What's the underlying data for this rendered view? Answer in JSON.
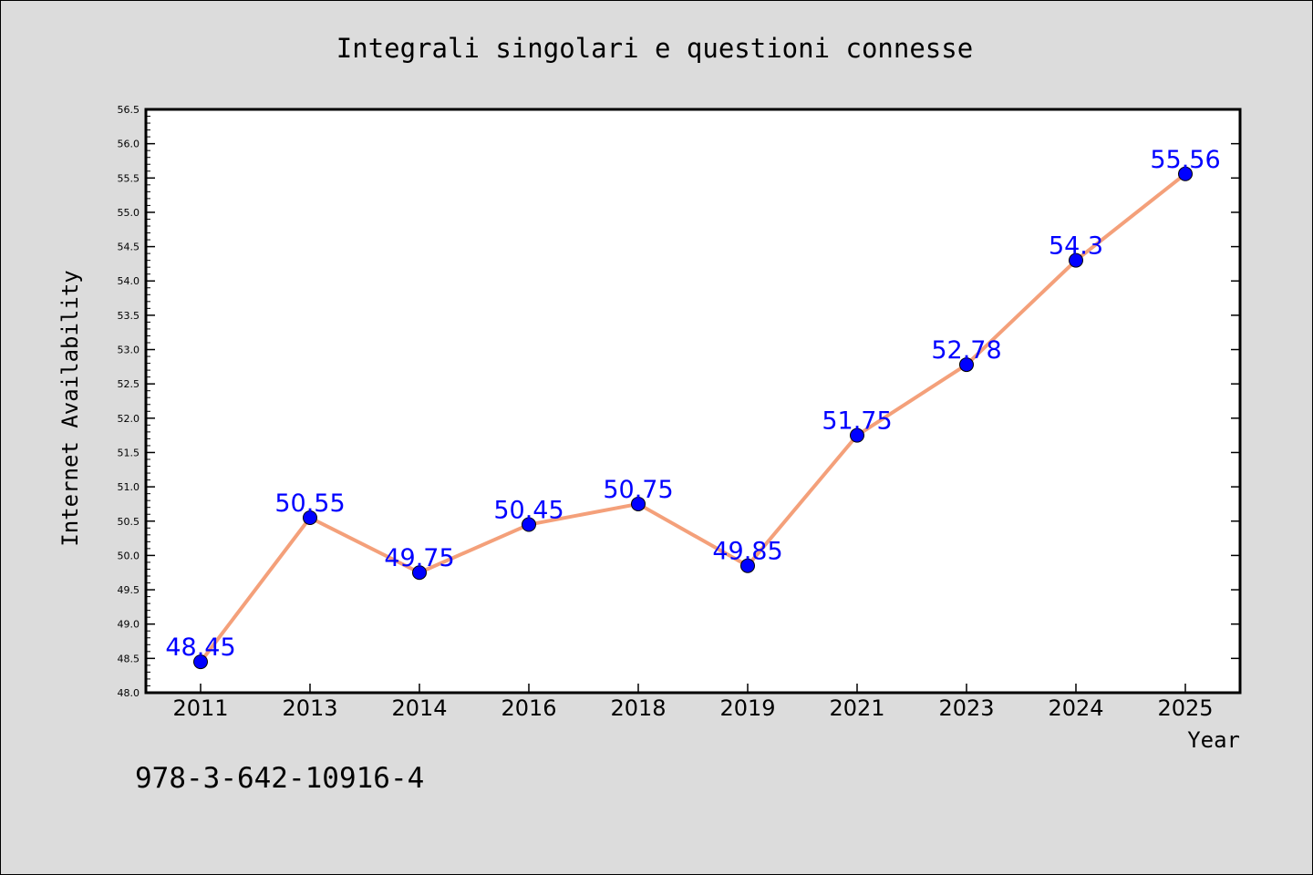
{
  "chart_data": {
    "type": "line",
    "title": "Integrali singolari e questioni connesse",
    "xlabel": "Year",
    "ylabel": "Internet Availability",
    "categories": [
      "2011",
      "2013",
      "2014",
      "2016",
      "2018",
      "2019",
      "2021",
      "2023",
      "2024",
      "2025"
    ],
    "series": [
      {
        "values": [
          48.45,
          50.55,
          49.75,
          50.45,
          50.75,
          49.85,
          51.75,
          52.78,
          54.3,
          55.56
        ],
        "labels": [
          "48.45",
          "50.55",
          "49.75",
          "50.45",
          "50.75",
          "49.85",
          "51.75",
          "52.78",
          "54.3",
          "55.56"
        ]
      }
    ],
    "ylim": [
      48.0,
      56.5
    ],
    "yticks": [
      "48.0",
      "48.5",
      "49.0",
      "49.5",
      "50.0",
      "50.5",
      "51.0",
      "51.5",
      "52.0",
      "52.5",
      "53.0",
      "53.5",
      "54.0",
      "54.5",
      "55.0",
      "55.5",
      "56.0",
      "56.5"
    ],
    "grid": false,
    "colors": {
      "line": "#f4a07a",
      "marker": "#0000ff",
      "label": "#0000ff",
      "background": "#dcdcdc",
      "plot_background": "#ffffff"
    }
  },
  "footer_text": "978-3-642-10916-4"
}
